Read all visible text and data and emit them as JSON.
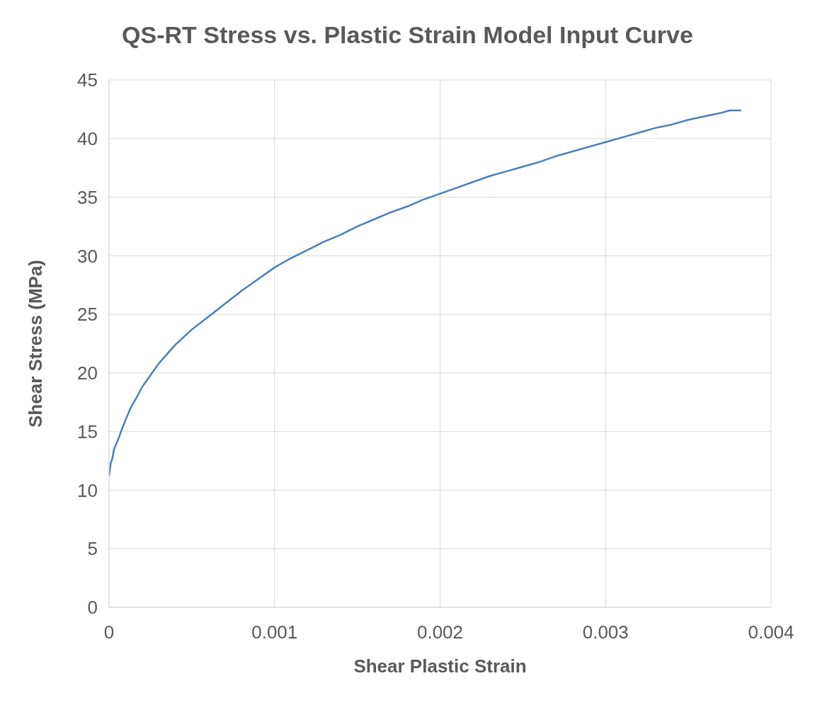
{
  "chart_data": {
    "type": "line",
    "title": "QS-RT  Stress vs. Plastic Strain Model Input Curve",
    "xlabel": "Shear Plastic Strain",
    "ylabel": "Shear Stress (MPa)",
    "x": [
      0,
      1e-05,
      2e-05,
      3e-05,
      6e-05,
      8e-05,
      0.0001,
      0.00013,
      0.00017,
      0.0002,
      0.00025,
      0.0003,
      0.00035,
      0.0004,
      0.0005,
      0.0006,
      0.0007,
      0.0008,
      0.0009,
      0.001,
      0.0011,
      0.0012,
      0.0013,
      0.0014,
      0.0015,
      0.0016,
      0.0017,
      0.0018,
      0.0019,
      0.002,
      0.0021,
      0.0022,
      0.0023,
      0.0024,
      0.0025,
      0.0026,
      0.0027,
      0.0028,
      0.0029,
      0.003,
      0.0031,
      0.0032,
      0.0033,
      0.0034,
      0.0035,
      0.0036,
      0.0037,
      0.00375,
      0.00382
    ],
    "series": [
      {
        "color": "#4a7ebb",
        "values": [
          11.2,
          12.3,
          12.7,
          13.5,
          14.5,
          15.3,
          16.0,
          17.0,
          18.0,
          18.8,
          19.8,
          20.8,
          21.6,
          22.4,
          23.7,
          24.8,
          25.9,
          27.0,
          28.0,
          29.0,
          29.8,
          30.5,
          31.2,
          31.8,
          32.5,
          33.1,
          33.7,
          34.2,
          34.8,
          35.3,
          35.8,
          36.3,
          36.8,
          37.2,
          37.6,
          38.0,
          38.5,
          38.9,
          39.3,
          39.7,
          40.1,
          40.5,
          40.9,
          41.2,
          41.6,
          41.9,
          42.2,
          42.4,
          42.4
        ]
      }
    ],
    "xlim": [
      0,
      0.004
    ],
    "xticks": [
      0,
      0.001,
      0.002,
      0.003,
      0.004
    ],
    "ylim": [
      0,
      45
    ],
    "yticks": [
      0,
      5,
      10,
      15,
      20,
      25,
      30,
      35,
      40,
      45
    ],
    "grid": true,
    "marker": "none",
    "line_style": "solid"
  }
}
